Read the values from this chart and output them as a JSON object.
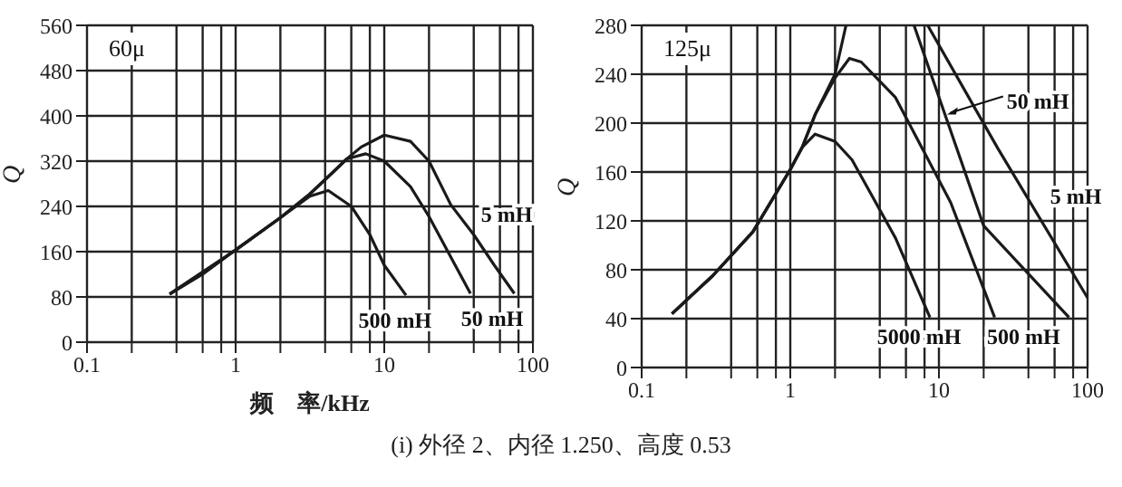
{
  "chart_data": [
    {
      "type": "line",
      "title": "60μ",
      "xlabel": "频　率/kHz",
      "ylabel": "Q",
      "log": "x",
      "grid": true,
      "legend": false,
      "xlim": [
        0.1,
        100
      ],
      "ylim": [
        0,
        560
      ],
      "xticks": [
        0.1,
        {
          "value": 0.2,
          "label": null
        },
        {
          "value": 0.4,
          "label": null
        },
        {
          "value": 0.6,
          "label": null
        },
        {
          "value": 0.8,
          "label": null
        },
        1,
        {
          "value": 2,
          "label": null
        },
        {
          "value": 4,
          "label": null
        },
        {
          "value": 6,
          "label": null
        },
        {
          "value": 8,
          "label": null
        },
        10,
        {
          "value": 20,
          "label": null
        },
        {
          "value": 40,
          "label": null
        },
        {
          "value": 60,
          "label": null
        },
        {
          "value": 80,
          "label": null
        },
        100
      ],
      "yticks": [
        0,
        80,
        160,
        240,
        320,
        400,
        480,
        560
      ],
      "series": [
        {
          "color": "#1a1a1a",
          "x": [
            0.36,
            0.6,
            1,
            2,
            3.16,
            4.2,
            6,
            8,
            10,
            14
          ],
          "values": [
            85,
            120,
            163,
            220,
            258,
            268,
            240,
            190,
            136,
            83
          ]
        },
        {
          "color": "#1a1a1a",
          "x": [
            0.36,
            1,
            2,
            3.16,
            4.5,
            5.6,
            7.5,
            10,
            15,
            20,
            30,
            38
          ],
          "values": [
            85,
            163,
            220,
            262,
            300,
            324,
            333,
            320,
            275,
            222,
            136,
            86
          ]
        },
        {
          "color": "#1a1a1a",
          "x": [
            0.36,
            1,
            2,
            3.16,
            4.5,
            5.6,
            7,
            10,
            15,
            20,
            28,
            40,
            55,
            75
          ],
          "values": [
            85,
            163,
            220,
            262,
            300,
            324,
            345,
            366,
            355,
            320,
            243,
            190,
            136,
            86
          ]
        }
      ],
      "annotations": [
        {
          "text": "500 mH",
          "x": 14,
          "y": 83
        },
        {
          "text": "50 mH",
          "x": 38,
          "y": 86
        },
        {
          "text": "5 mH",
          "x": 40,
          "y": 190
        },
        "(i) 外径 2、内径 1.250、高度 0.53"
      ]
    },
    {
      "type": "line",
      "title": "125μ",
      "ylabel": "Q",
      "log": "x",
      "grid": true,
      "legend": false,
      "xlim": [
        0.1,
        100
      ],
      "ylim": [
        0,
        280
      ],
      "xticks": [
        0.1,
        {
          "value": 0.2,
          "label": null
        },
        {
          "value": 0.4,
          "label": null
        },
        {
          "value": 0.6,
          "label": null
        },
        {
          "value": 0.8,
          "label": null
        },
        1,
        {
          "value": 2,
          "label": null
        },
        {
          "value": 4,
          "label": null
        },
        {
          "value": 6,
          "label": null
        },
        {
          "value": 8,
          "label": null
        },
        10,
        {
          "value": 20,
          "label": null
        },
        {
          "value": 40,
          "label": null
        },
        {
          "value": 60,
          "label": null
        },
        {
          "value": 80,
          "label": null
        },
        100
      ],
      "yticks": [
        0,
        40,
        80,
        120,
        160,
        200,
        240,
        280
      ],
      "series": [
        {
          "color": "#1a1a1a",
          "x": [
            0.16,
            0.3,
            0.56,
            1,
            1.2,
            1.47,
            2,
            2.6,
            5.1,
            8.7
          ],
          "values": [
            44,
            75,
            111,
            162,
            180,
            191,
            185,
            170,
            106,
            41
          ]
        },
        {
          "color": "#1a1a1a",
          "x": [
            0.16,
            0.3,
            0.56,
            1,
            1.2,
            1.47,
            2,
            2.5,
            3,
            5.1,
            12,
            23.7
          ],
          "values": [
            44,
            75,
            111,
            162,
            180,
            207,
            237,
            253,
            250,
            221,
            135,
            41
          ]
        },
        {
          "color": "#1a1a1a",
          "x": [
            0.16,
            0.3,
            0.56,
            1,
            1.2,
            1.47,
            2,
            2.37,
            4,
            6.8,
            20,
            75
          ],
          "values": [
            44,
            75,
            111,
            162,
            180,
            207,
            240,
            280,
            null,
            280,
            116,
            41
          ]
        },
        {
          "color": "#1a1a1a",
          "x": [
            8.4,
            25,
            100
          ],
          "values": [
            280,
            179,
            57
          ]
        }
      ],
      "annotations": [
        {
          "text": "5000 mH",
          "x": 8.7,
          "y": 41
        },
        {
          "text": "500 mH",
          "x": 23.7,
          "y": 41
        },
        {
          "text": "50 mH",
          "x": 11,
          "y": 207
        },
        {
          "text": "5 mH",
          "x": 40,
          "y": 138
        }
      ]
    }
  ]
}
